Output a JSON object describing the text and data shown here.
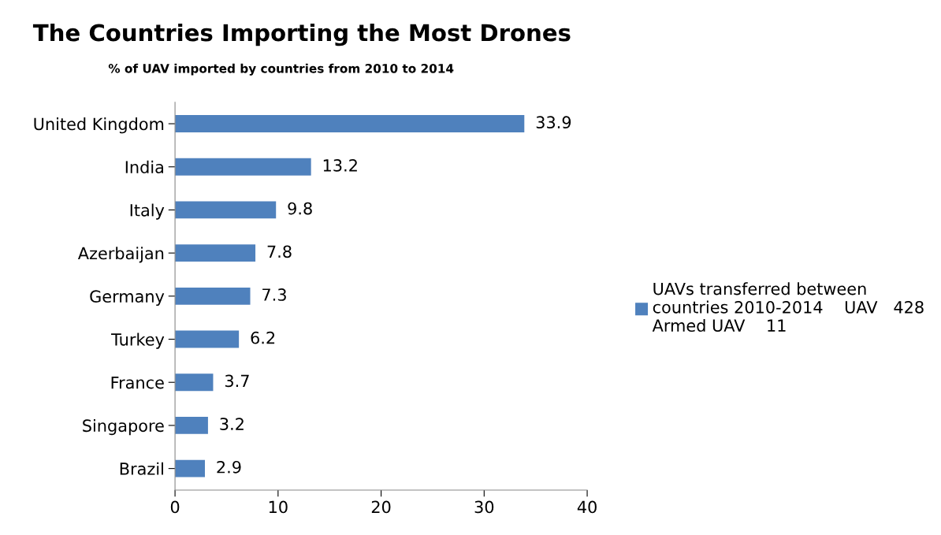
{
  "chart_data": {
    "type": "bar",
    "orientation": "horizontal",
    "title": "The Countries Importing the Most Drones",
    "subtitle": "% of UAV imported by countries from 2010 to 2014",
    "categories": [
      "United Kingdom",
      "India",
      "Italy",
      "Azerbaijan",
      "Germany",
      "Turkey",
      "France",
      "Singapore",
      "Brazil"
    ],
    "series": [
      {
        "name": "UAVs transferred between\ncountries 2010-2014    UAV   428\nArmed UAV    11",
        "color": "#4f81bd",
        "values": [
          33.9,
          13.2,
          9.8,
          7.8,
          7.3,
          6.2,
          3.7,
          3.2,
          2.9
        ]
      }
    ],
    "xlim": [
      0,
      40
    ],
    "xticks": [
      0,
      10,
      20,
      30,
      40
    ],
    "data_labels": true,
    "grid": false,
    "legend": "right"
  }
}
